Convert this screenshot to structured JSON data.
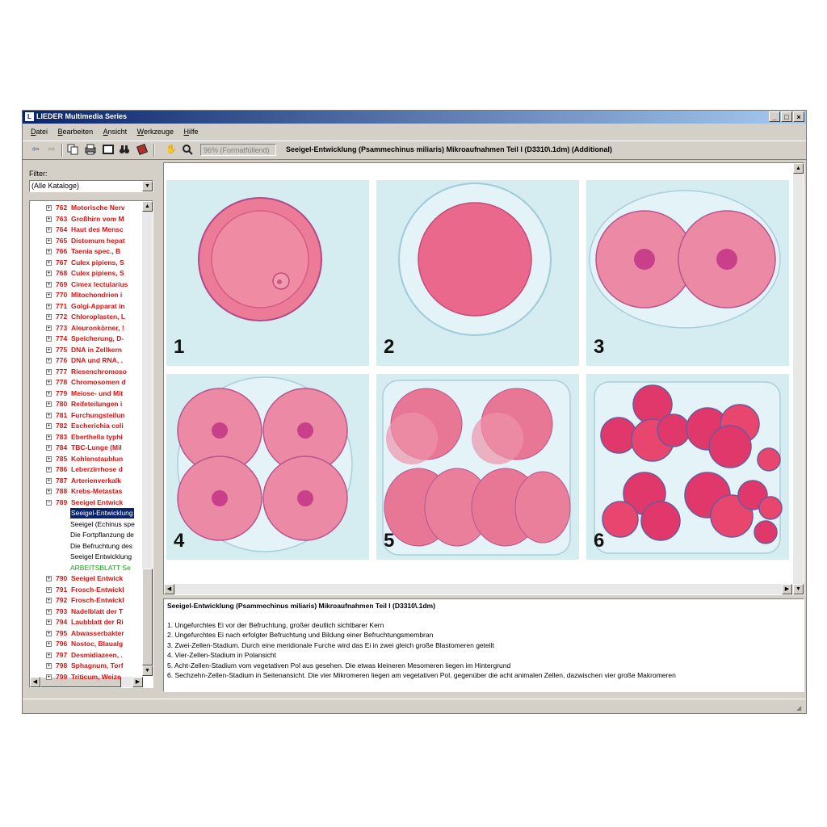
{
  "window": {
    "title": "LIEDER Multimedia Series",
    "app_icon": "L",
    "min": "_",
    "max": "□",
    "close": "×"
  },
  "menu": [
    "Datei",
    "Bearbeiten",
    "Ansicht",
    "Werkzeuge",
    "Hilfe"
  ],
  "toolbar": {
    "zoom": "96% (Formatfüllend)",
    "document_title": "Seeigel-Entwicklung (Psammechinus miliaris) Mikroaufnahmen Teil I  (D3310\\.1dm) (Additional)"
  },
  "filter": {
    "label": "Filter:",
    "value": "(Alle Kataloge)"
  },
  "tree": {
    "items_top": [
      {
        "num": "762",
        "label": "Motorische Nerv"
      },
      {
        "num": "763",
        "label": "Großhirn vom M"
      },
      {
        "num": "764",
        "label": "Haut des Mensc"
      },
      {
        "num": "765",
        "label": "Distomum hepat"
      },
      {
        "num": "766",
        "label": "Taenia spec., B"
      },
      {
        "num": "767",
        "label": "Culex pipiens, S"
      },
      {
        "num": "768",
        "label": "Culex pipiens, S"
      },
      {
        "num": "769",
        "label": "Cimex lectularius"
      },
      {
        "num": "770",
        "label": "Mitochondrien i"
      },
      {
        "num": "771",
        "label": "Golgi-Apparat in"
      },
      {
        "num": "772",
        "label": "Chloroplasten, L"
      },
      {
        "num": "773",
        "label": "Aleuronkörner, !"
      },
      {
        "num": "774",
        "label": "Speicherung, D-"
      },
      {
        "num": "775",
        "label": "DNA in Zellkern"
      },
      {
        "num": "776",
        "label": "DNA und RNA, ."
      },
      {
        "num": "777",
        "label": "Riesenchromoso"
      },
      {
        "num": "778",
        "label": "Chromosomen d"
      },
      {
        "num": "779",
        "label": "Meiose- und Mit"
      },
      {
        "num": "780",
        "label": "Reifeteilungen i"
      },
      {
        "num": "781",
        "label": "Furchungsteilun"
      },
      {
        "num": "782",
        "label": "Escherichia coli"
      },
      {
        "num": "783",
        "label": "Eberthella typhi"
      },
      {
        "num": "784",
        "label": "TBC-Lunge (Mil"
      },
      {
        "num": "785",
        "label": "Kohlenstaublun"
      },
      {
        "num": "786",
        "label": "Leberzirrhose d"
      },
      {
        "num": "787",
        "label": "Arterienverkalk"
      },
      {
        "num": "788",
        "label": "Krebs-Metastas"
      },
      {
        "num": "789",
        "label": "Seeigel Entwick"
      }
    ],
    "children": [
      "Seeigel-Entwicklung",
      "Seeigel (Echinus spe",
      "Die Fortpflanzung de",
      "Die Befruchtung des",
      "Seeigel Entwicklung",
      "ARBEITSBLATT Se"
    ],
    "items_bottom": [
      {
        "num": "790",
        "label": "Seeigel Entwick"
      },
      {
        "num": "791",
        "label": "Frosch-Entwickl"
      },
      {
        "num": "792",
        "label": "Frosch-Entwickl"
      },
      {
        "num": "793",
        "label": "Nadelblatt der T"
      },
      {
        "num": "794",
        "label": "Laubblatt der Ri"
      },
      {
        "num": "795",
        "label": "Abwasserbakter"
      },
      {
        "num": "796",
        "label": "Nostoc, Blaualg"
      },
      {
        "num": "797",
        "label": "Desmidiazeen, ."
      },
      {
        "num": "798",
        "label": "Sphagnum, Torf"
      },
      {
        "num": "799",
        "label": "Triticum, Weize"
      }
    ],
    "plus": "+",
    "minus": "−"
  },
  "panels": [
    "1",
    "2",
    "3",
    "4",
    "5",
    "6"
  ],
  "description": {
    "heading": "Seeigel-Entwicklung (Psammechinus miliaris) Mikroaufnahmen Teil I  (D3310\\.1dm)",
    "items": [
      "1.   Ungefurchtes Ei vor der Befruchtung, großer deutlich sichtbarer Kern",
      "2.   Ungefurchtes Ei nach erfolgter Befruchtung und Bildung einer Befruchtungsmembran",
      "3.   Zwei-Zellen-Stadium. Durch eine meridionale Furche wird das Ei in zwei gleich große Blastomeren geteilt",
      "4.   Vier-Zellen-Stadium in Polansicht",
      "5.   Acht-Zellen-Stadium vom vegetativen Pol aus gesehen. Die etwas kleineren Mesomeren liegen im Hintergrund",
      "6.   Sechzehn-Zellen-Stadium in Seitenansicht. Die vier Mikromeren liegen am vegetativen Pol, gegenüber die acht animalen Zellen, dazwischen vier große Makromeren"
    ]
  },
  "colors": {
    "title_start": "#0a246a",
    "title_end": "#a6caf0",
    "tree_red": "#e01010",
    "selection": "#0a246a",
    "green": "#10a010",
    "cell_pink": "#e8708f",
    "panel_bg": "#d5ecf1"
  }
}
